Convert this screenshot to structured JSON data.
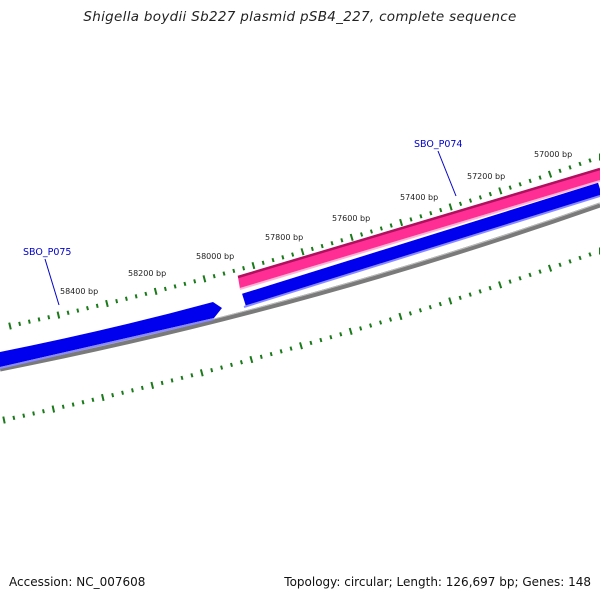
{
  "title": "Shigella boydii Sb227 plasmid pSB4_227, complete sequence",
  "tick_labels": [
    "57000 bp",
    "57200 bp",
    "57400 bp",
    "57600 bp",
    "57800 bp",
    "58000 bp",
    "58200 bp",
    "58400 bp"
  ],
  "genes": [
    {
      "name": "SBO_P074",
      "strand": "reverse",
      "color": "#ff3fa0"
    },
    {
      "name": "SBO_P075",
      "strand": "forward",
      "color": "#0000ee"
    }
  ],
  "colors": {
    "forward_strand": "#0000ee",
    "reverse_strand": "#ff3fa0",
    "backbone": "#808080",
    "ticks": "#1a7a1a",
    "gene_label": "#0000cc"
  },
  "footer": {
    "accession": "Accession: NC_007608",
    "summary": "Topology: circular; Length: 126,697 bp; Genes: 148"
  }
}
